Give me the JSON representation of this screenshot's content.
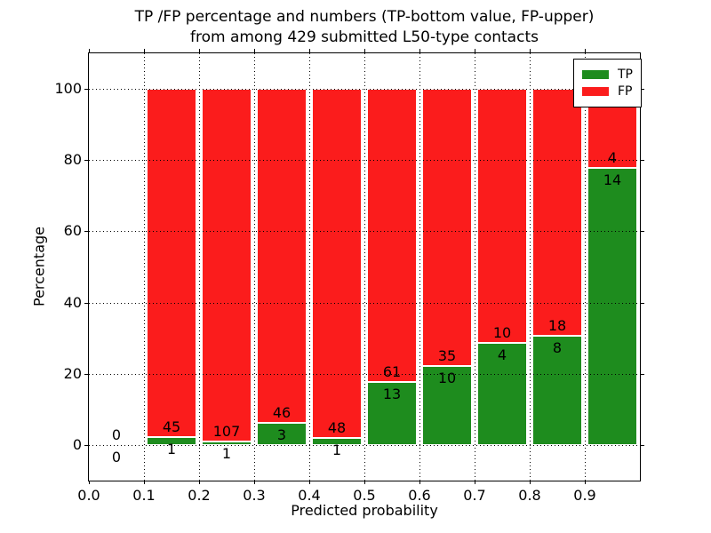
{
  "title": {
    "line1": "TP /FP percentage and numbers (TP-bottom value, FP-upper)",
    "line2": "from among 429 submitted L50-type contacts"
  },
  "legend": {
    "items": [
      {
        "label": "TP",
        "color": "#1e8c1e"
      },
      {
        "label": "FP",
        "color": "#fb1c1c"
      }
    ]
  },
  "chart_data": {
    "type": "bar",
    "stacked": true,
    "title": "TP /FP percentage and numbers (TP-bottom value, FP-upper) from among 429 submitted L50-type contacts",
    "xlabel": "Predicted probability",
    "ylabel": "Percentage",
    "total_submitted": 429,
    "xlim": [
      0.0,
      1.0
    ],
    "ylim": [
      -10,
      110
    ],
    "grid": "dotted",
    "legend_position": "upper right",
    "bar_width": 0.09,
    "x_ticks": [
      {
        "v": 0.0,
        "label": "0.0"
      },
      {
        "v": 0.1,
        "label": "0.1"
      },
      {
        "v": 0.2,
        "label": "0.2"
      },
      {
        "v": 0.3,
        "label": "0.3"
      },
      {
        "v": 0.4,
        "label": "0.4"
      },
      {
        "v": 0.5,
        "label": "0.5"
      },
      {
        "v": 0.6,
        "label": "0.6"
      },
      {
        "v": 0.7,
        "label": "0.7"
      },
      {
        "v": 0.8,
        "label": "0.8"
      },
      {
        "v": 0.9,
        "label": "0.9"
      }
    ],
    "y_ticks": [
      {
        "v": 0,
        "label": "0"
      },
      {
        "v": 20,
        "label": "20"
      },
      {
        "v": 40,
        "label": "40"
      },
      {
        "v": 60,
        "label": "60"
      },
      {
        "v": 80,
        "label": "80"
      },
      {
        "v": 100,
        "label": "100"
      }
    ],
    "series": [
      {
        "name": "TP",
        "color": "#1e8c1e"
      },
      {
        "name": "FP",
        "color": "#fb1c1c"
      }
    ],
    "bins": [
      {
        "range": [
          0.0,
          0.1
        ],
        "center": 0.05,
        "tp_count": 0,
        "fp_count": 0,
        "tp_pct": 0,
        "fp_pct": 0
      },
      {
        "range": [
          0.1,
          0.2
        ],
        "center": 0.15,
        "tp_count": 1,
        "fp_count": 45,
        "tp_pct": 2.17,
        "fp_pct": 97.83
      },
      {
        "range": [
          0.2,
          0.3
        ],
        "center": 0.25,
        "tp_count": 1,
        "fp_count": 107,
        "tp_pct": 0.93,
        "fp_pct": 99.07
      },
      {
        "range": [
          0.3,
          0.4
        ],
        "center": 0.35,
        "tp_count": 3,
        "fp_count": 46,
        "tp_pct": 6.12,
        "fp_pct": 93.88
      },
      {
        "range": [
          0.4,
          0.5
        ],
        "center": 0.45,
        "tp_count": 1,
        "fp_count": 48,
        "tp_pct": 2.04,
        "fp_pct": 97.96
      },
      {
        "range": [
          0.5,
          0.6
        ],
        "center": 0.55,
        "tp_count": 13,
        "fp_count": 61,
        "tp_pct": 17.57,
        "fp_pct": 82.43
      },
      {
        "range": [
          0.6,
          0.7
        ],
        "center": 0.65,
        "tp_count": 10,
        "fp_count": 35,
        "tp_pct": 22.22,
        "fp_pct": 77.78
      },
      {
        "range": [
          0.7,
          0.8
        ],
        "center": 0.75,
        "tp_count": 4,
        "fp_count": 10,
        "tp_pct": 28.57,
        "fp_pct": 71.43
      },
      {
        "range": [
          0.8,
          0.9
        ],
        "center": 0.85,
        "tp_count": 8,
        "fp_count": 18,
        "tp_pct": 30.77,
        "fp_pct": 69.23
      },
      {
        "range": [
          0.9,
          1.0
        ],
        "center": 0.95,
        "tp_count": 14,
        "fp_count": 4,
        "tp_pct": 77.78,
        "fp_pct": 22.22
      }
    ]
  }
}
